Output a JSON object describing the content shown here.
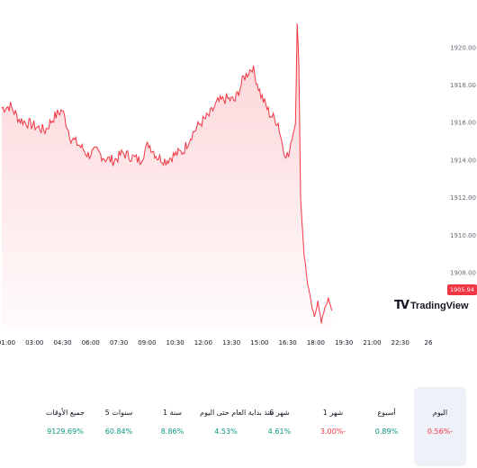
{
  "chart_data": {
    "type": "area",
    "y_ticks": [
      "1920.00",
      "1918.00",
      "1916.00",
      "1914.00",
      "1912.00",
      "1910.00",
      "1908.00"
    ],
    "x_ticks": [
      "01:00",
      "03:00",
      "04:30",
      "06:00",
      "07:30",
      "09:00",
      "10:30",
      "12:00",
      "13:30",
      "15:00",
      "16:30",
      "18:00",
      "19:30",
      "21:00",
      "22:30",
      "26"
    ],
    "ylim": [
      1905.0,
      1921.6
    ],
    "last_price": "1905.94",
    "series": [
      {
        "color": "#f23645",
        "x": [
          0,
          0.5,
          1,
          1.5,
          2,
          2.5,
          3,
          3.5,
          4,
          4.5,
          5,
          5.5,
          6,
          6.5,
          7,
          7.5,
          8,
          8.5,
          9,
          9.5,
          10,
          10.5,
          11,
          11.5,
          12,
          12.5,
          13,
          13.5,
          14,
          14.5,
          15,
          15.5,
          16,
          16.3,
          16.6,
          16.8,
          17.0,
          17.1,
          17.2,
          17.3,
          17.5,
          17.7,
          17.9,
          18.1,
          18.3,
          18.5,
          18.7,
          18.9,
          19.1
        ],
        "values": [
          1916.8,
          1916.9,
          1916.2,
          1916.0,
          1915.8,
          1915.6,
          1916.3,
          1916.7,
          1915.2,
          1914.8,
          1914.3,
          1914.5,
          1914.1,
          1914.0,
          1914.4,
          1914.2,
          1914.0,
          1914.9,
          1914.2,
          1914.0,
          1914.3,
          1914.5,
          1915.4,
          1916.0,
          1916.4,
          1917.1,
          1917.3,
          1917.2,
          1918.4,
          1919.0,
          1917.5,
          1916.5,
          1916.0,
          1914.6,
          1914.2,
          1915.2,
          1916.0,
          1921.4,
          1919.0,
          1912.0,
          1909.0,
          1907.5,
          1906.4,
          1905.6,
          1906.6,
          1905.3,
          1906.2,
          1906.6,
          1906.0
        ]
      }
    ],
    "x_range": [
      0,
      24.8
    ]
  },
  "logo": {
    "word": "TradingView",
    "mark": "TV"
  },
  "periods": [
    {
      "label": "اليوم",
      "value": "0.56%-",
      "tone": "neg",
      "active": true
    },
    {
      "label": "أسبوع",
      "value": "0.89%",
      "tone": "pos",
      "active": false
    },
    {
      "label": "1 شهر",
      "value": "3.00%-",
      "tone": "neg",
      "active": false
    },
    {
      "label": "6 شهر",
      "value": "4.61%",
      "tone": "pos",
      "active": false
    },
    {
      "label": "منذ بداية العام حتى اليوم",
      "value": "4.53%",
      "tone": "pos",
      "active": false
    },
    {
      "label": "1 سنة",
      "value": "8.86%",
      "tone": "pos",
      "active": false
    },
    {
      "label": "5 سنوات",
      "value": "60.84%",
      "tone": "pos",
      "active": false
    },
    {
      "label": "جميع الأوقات",
      "value": "9129.69%",
      "tone": "pos",
      "active": false
    }
  ]
}
